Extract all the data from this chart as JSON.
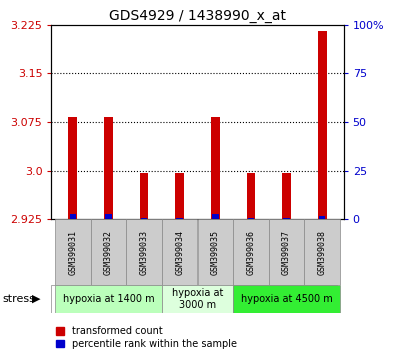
{
  "title": "GDS4929 / 1438990_x_at",
  "samples": [
    "GSM399031",
    "GSM399032",
    "GSM399033",
    "GSM399034",
    "GSM399035",
    "GSM399036",
    "GSM399037",
    "GSM399038"
  ],
  "red_values": [
    3.083,
    3.083,
    2.996,
    2.996,
    3.083,
    2.996,
    2.996,
    3.215
  ],
  "blue_percentiles": [
    3,
    3,
    1,
    1,
    3,
    1,
    1,
    2
  ],
  "ylim_left": [
    2.925,
    3.225
  ],
  "ylim_right": [
    0,
    100
  ],
  "yticks_left": [
    2.925,
    3.0,
    3.075,
    3.15,
    3.225
  ],
  "yticks_right": [
    0,
    25,
    50,
    75,
    100
  ],
  "groups": [
    {
      "label": "hypoxia at 1400 m",
      "start": 0,
      "end": 3,
      "color": "#bbffbb"
    },
    {
      "label": "hypoxia at\n3000 m",
      "start": 3,
      "end": 5,
      "color": "#ddffdd"
    },
    {
      "label": "hypoxia at 4500 m",
      "start": 5,
      "end": 8,
      "color": "#33ee33"
    }
  ],
  "bar_width": 0.25,
  "blue_bar_width": 0.18,
  "bar_color_red": "#cc0000",
  "bar_color_blue": "#0000cc",
  "title_fontsize": 10,
  "axis_color_left": "#cc0000",
  "axis_color_right": "#0000cc",
  "stress_label": "stress",
  "legend_red": "transformed count",
  "legend_blue": "percentile rank within the sample",
  "sample_box_color": "#cccccc",
  "gridline_ticks": [
    3.0,
    3.075,
    3.15
  ]
}
